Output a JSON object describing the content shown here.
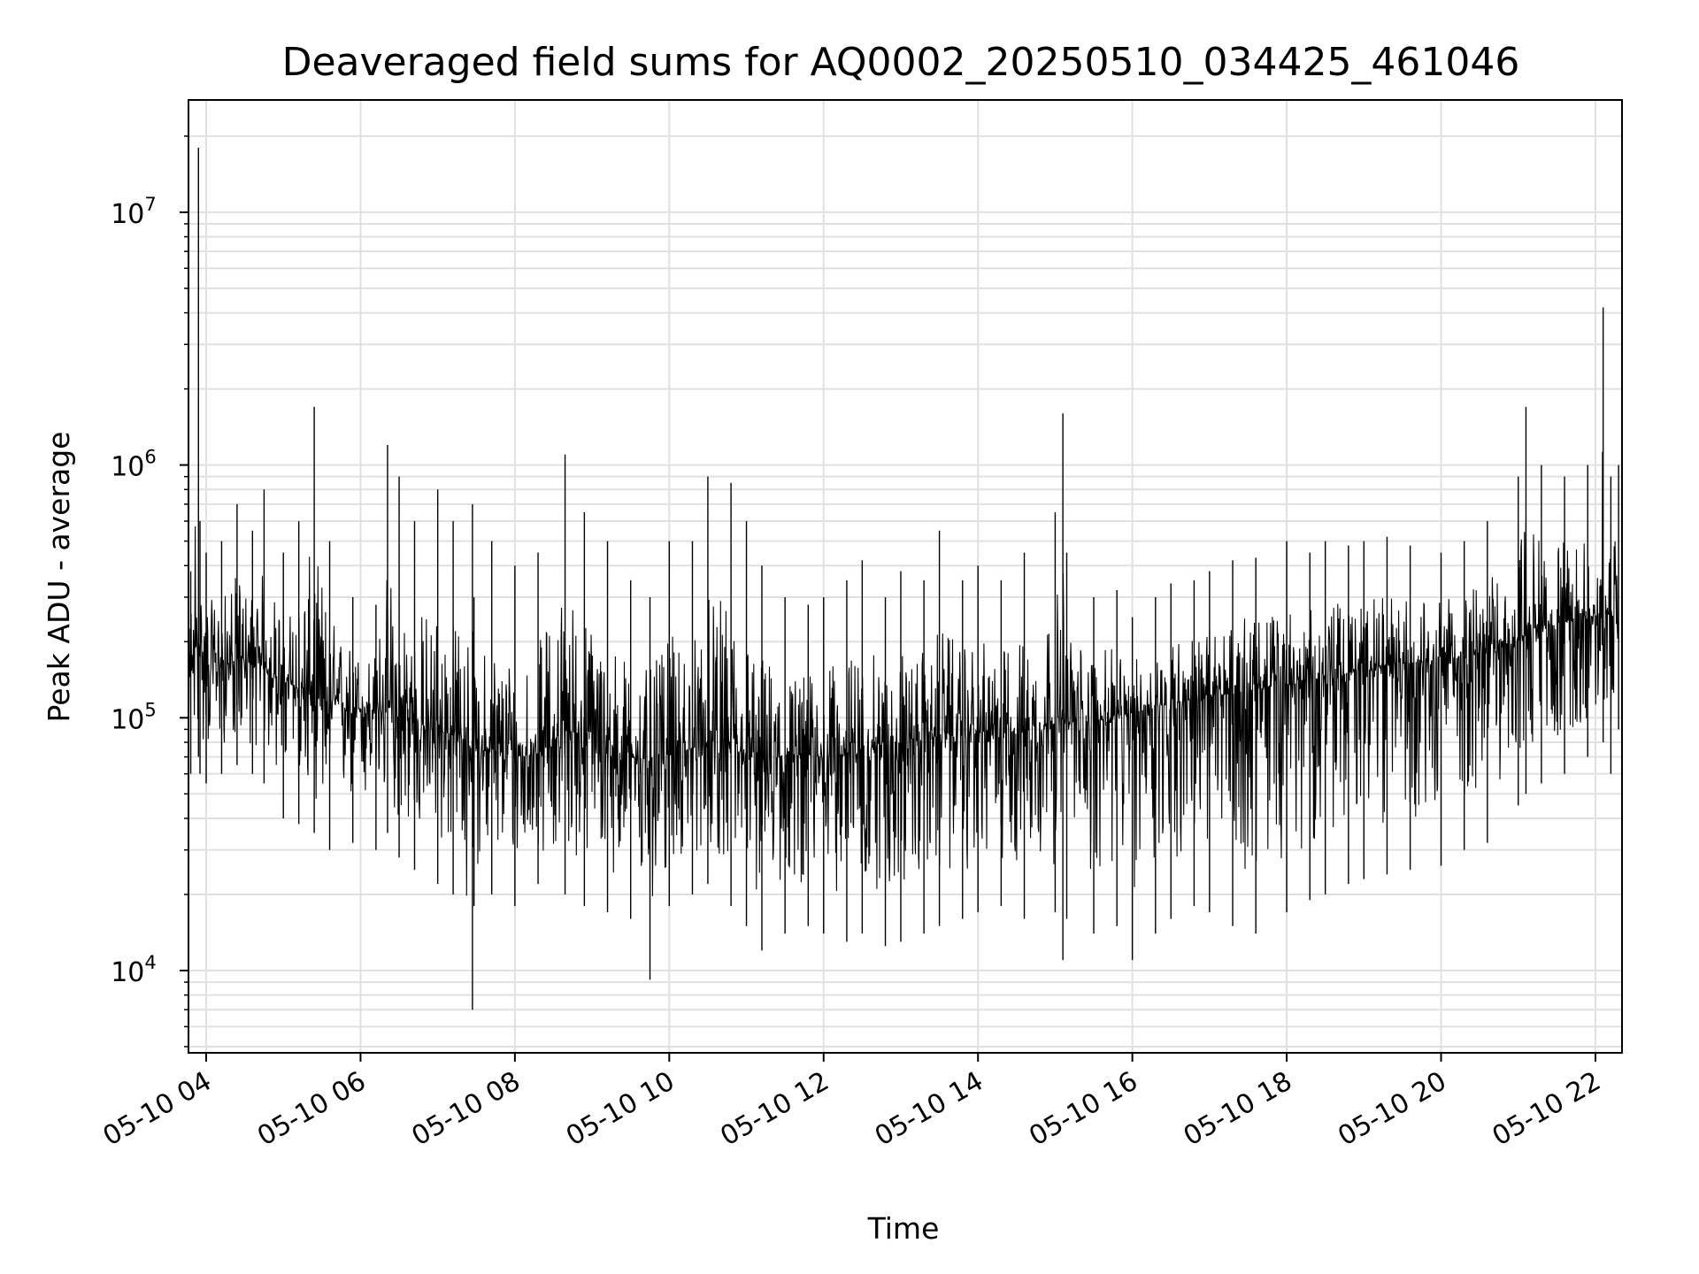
{
  "chart_data": {
    "type": "line",
    "title": "Deaveraged field sums for AQ0002_20250510_034425_461046",
    "xlabel": "Time",
    "ylabel": "Peak ADU - average",
    "y_scale": "log",
    "xlim": [
      "2025-05-10 03:44",
      "2025-05-10 22:20"
    ],
    "ylim": [
      4700,
      27000000
    ],
    "x_ticks": [
      "05-10 04",
      "05-10 06",
      "05-10 08",
      "05-10 10",
      "05-10 12",
      "05-10 14",
      "05-10 16",
      "05-10 18",
      "05-10 20",
      "05-10 22"
    ],
    "x_tick_hours": [
      4,
      6,
      8,
      10,
      12,
      14,
      16,
      18,
      20,
      22
    ],
    "y_ticks": [
      10000,
      100000,
      1000000,
      10000000
    ],
    "y_tick_labels": [
      {
        "base": "10",
        "exp": "4"
      },
      {
        "base": "10",
        "exp": "5"
      },
      {
        "base": "10",
        "exp": "6"
      },
      {
        "base": "10",
        "exp": "7"
      }
    ],
    "grid": true,
    "line_color": "#000000",
    "grid_color": "#e0e0e0",
    "series": [
      {
        "x_hours": [
          3.73,
          3.75,
          3.8,
          3.9,
          3.92,
          4.0,
          4.2,
          4.4,
          4.6,
          4.75,
          5.0,
          5.2,
          5.4,
          5.6,
          5.9,
          6.2,
          6.35,
          6.5,
          6.7,
          7.0,
          7.2,
          7.45,
          7.47,
          7.7,
          8.0,
          8.3,
          8.65,
          8.9,
          9.2,
          9.5,
          9.75,
          10.0,
          10.3,
          10.5,
          10.8,
          11.0,
          11.2,
          11.5,
          11.8,
          12.0,
          12.3,
          12.5,
          12.8,
          13.0,
          13.3,
          13.5,
          13.8,
          14.0,
          14.3,
          14.6,
          15.0,
          15.1,
          15.15,
          15.5,
          15.8,
          16.0,
          16.3,
          16.5,
          16.8,
          17.0,
          17.3,
          17.6,
          18.0,
          18.3,
          18.5,
          18.8,
          19.0,
          19.3,
          19.6,
          20.0,
          20.3,
          20.6,
          21.0,
          21.1,
          21.3,
          21.6,
          21.9,
          22.1,
          22.2,
          22.3
        ],
        "y_peak": [
          300000,
          350000,
          380000,
          18000000,
          600000,
          450000,
          500000,
          700000,
          550000,
          800000,
          450000,
          600000,
          1700000,
          500000,
          300000,
          280000,
          1200000,
          900000,
          600000,
          800000,
          600000,
          700000,
          300000,
          500000,
          400000,
          450000,
          1100000,
          650000,
          500000,
          350000,
          300000,
          500000,
          500000,
          900000,
          850000,
          600000,
          400000,
          300000,
          280000,
          300000,
          350000,
          420000,
          300000,
          380000,
          350000,
          550000,
          350000,
          400000,
          350000,
          450000,
          650000,
          1600000,
          450000,
          300000,
          320000,
          250000,
          300000,
          340000,
          350000,
          380000,
          420000,
          430000,
          500000,
          450000,
          500000,
          480000,
          500000,
          520000,
          480000,
          450000,
          500000,
          600000,
          900000,
          1700000,
          1000000,
          900000,
          1000000,
          4200000,
          900000,
          1000000
        ],
        "y_mid": [
          150000,
          160000,
          170000,
          200000,
          180000,
          170000,
          160000,
          170000,
          165000,
          160000,
          140000,
          130000,
          120000,
          115000,
          110000,
          105000,
          110000,
          100000,
          95000,
          90000,
          85000,
          80000,
          75000,
          75000,
          70000,
          72000,
          90000,
          85000,
          75000,
          70000,
          68000,
          72000,
          75000,
          80000,
          75000,
          70000,
          68000,
          70000,
          72000,
          70000,
          72000,
          75000,
          78000,
          80000,
          82000,
          85000,
          85000,
          88000,
          88000,
          90000,
          95000,
          100000,
          95000,
          98000,
          100000,
          105000,
          110000,
          115000,
          118000,
          120000,
          125000,
          130000,
          135000,
          140000,
          145000,
          150000,
          155000,
          160000,
          165000,
          170000,
          175000,
          185000,
          200000,
          220000,
          230000,
          240000,
          250000,
          260000,
          255000,
          250000
        ],
        "y_low": [
          70000,
          65000,
          60000,
          70000,
          60000,
          55000,
          60000,
          65000,
          60000,
          55000,
          40000,
          38000,
          35000,
          30000,
          32000,
          30000,
          35000,
          28000,
          25000,
          22000,
          20000,
          7000,
          18000,
          20000,
          18000,
          22000,
          20000,
          18000,
          17000,
          16000,
          9200,
          18000,
          20000,
          22000,
          18000,
          15000,
          12000,
          14000,
          15000,
          14000,
          13000,
          14000,
          12500,
          13000,
          14000,
          15000,
          16000,
          17000,
          18000,
          16000,
          17000,
          11000,
          16000,
          14000,
          15000,
          11000,
          14000,
          16000,
          18000,
          17000,
          15000,
          14000,
          17000,
          19000,
          20000,
          22000,
          23000,
          24000,
          25000,
          26000,
          30000,
          32000,
          45000,
          50000,
          55000,
          60000,
          70000,
          80000,
          60000,
          90000
        ]
      }
    ]
  }
}
